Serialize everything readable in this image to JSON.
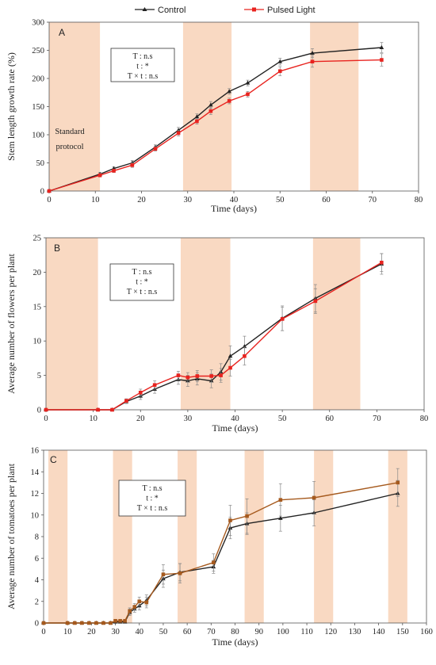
{
  "legend": {
    "series": [
      {
        "name": "Control",
        "color": "#222222",
        "marker": "triangle"
      },
      {
        "name": "Pulsed Light",
        "color": "#e8231f",
        "marker": "square"
      }
    ]
  },
  "chart_data": [
    {
      "type": "line",
      "panel": "A",
      "xlabel": "Time (days)",
      "ylabel": "Stem length growth rate (%)",
      "xlim": [
        0,
        80
      ],
      "ylim": [
        0,
        300
      ],
      "xticks": [
        0,
        10,
        20,
        30,
        40,
        50,
        60,
        70,
        80
      ],
      "yticks": [
        0,
        50,
        100,
        150,
        200,
        250,
        300
      ],
      "shaded_ranges": [
        [
          0,
          11
        ],
        [
          29,
          39.5
        ],
        [
          56.5,
          67
        ]
      ],
      "shade_color": "#f9d9c2",
      "stats": [
        "T : n.s",
        "t : *",
        "T × t : n.s"
      ],
      "annotation": [
        "Standard",
        "protocol"
      ],
      "series": [
        {
          "name": "Control",
          "color": "#222222",
          "x": [
            0,
            11,
            14,
            18,
            23,
            28,
            32,
            35,
            39,
            43,
            50,
            57,
            72
          ],
          "y": [
            0,
            30,
            40,
            50,
            78,
            108,
            132,
            153,
            177,
            192,
            230,
            245,
            255
          ],
          "err": [
            0,
            3,
            3,
            4,
            4,
            5,
            5,
            6,
            5,
            5,
            6,
            8,
            9
          ]
        },
        {
          "name": "Pulsed Light",
          "color": "#e8231f",
          "x": [
            0,
            11,
            14,
            18,
            23,
            28,
            32,
            35,
            39,
            43,
            50,
            57,
            72
          ],
          "y": [
            0,
            28,
            36,
            46,
            75,
            103,
            124,
            142,
            160,
            172,
            213,
            230,
            233
          ],
          "err": [
            0,
            3,
            3,
            4,
            4,
            5,
            5,
            6,
            5,
            5,
            8,
            10,
            11
          ]
        }
      ]
    },
    {
      "type": "line",
      "panel": "B",
      "xlabel": "Time (days)",
      "ylabel": "Average number of flowers per plant",
      "xlim": [
        0,
        80
      ],
      "ylim": [
        0,
        25
      ],
      "xticks": [
        0,
        10,
        20,
        30,
        40,
        50,
        60,
        70,
        80
      ],
      "yticks": [
        0,
        5,
        10,
        15,
        20,
        25
      ],
      "shaded_ranges": [
        [
          0,
          11
        ],
        [
          28.5,
          39
        ],
        [
          56.5,
          66.5
        ]
      ],
      "shade_color": "#f9d9c2",
      "stats": [
        "T : n.s",
        "t : *",
        "T × t : n.s"
      ],
      "series": [
        {
          "name": "Control",
          "color": "#222222",
          "x": [
            0,
            11,
            14,
            17,
            20,
            23,
            28,
            30,
            32,
            35,
            37,
            39,
            42,
            50,
            57,
            71
          ],
          "y": [
            0,
            0,
            0,
            1.2,
            2.0,
            3.0,
            4.4,
            4.2,
            4.5,
            4.2,
            5.5,
            7.8,
            9.2,
            13.3,
            16.2,
            21.2
          ],
          "err": [
            0,
            0,
            0,
            0.3,
            0.5,
            0.6,
            0.7,
            0.8,
            0.9,
            1.0,
            1.2,
            1.5,
            1.5,
            1.8,
            2.0,
            1.5
          ]
        },
        {
          "name": "Pulsed Light",
          "color": "#e8231f",
          "x": [
            0,
            11,
            14,
            17,
            20,
            23,
            28,
            30,
            32,
            35,
            37,
            39,
            42,
            50,
            57,
            71
          ],
          "y": [
            0,
            0,
            0,
            1.3,
            2.5,
            3.6,
            5.0,
            4.7,
            4.9,
            4.9,
            5.0,
            6.1,
            7.8,
            13.2,
            15.8,
            21.4
          ],
          "err": [
            0,
            0,
            0,
            0.3,
            0.5,
            0.6,
            0.6,
            0.7,
            0.8,
            0.9,
            1.0,
            1.2,
            1.3,
            1.7,
            1.8,
            1.3
          ]
        }
      ]
    },
    {
      "type": "line",
      "panel": "C",
      "xlabel": "Time (days)",
      "ylabel": "Average number of tomatoes per plant",
      "xlim": [
        0,
        160
      ],
      "ylim": [
        0,
        16
      ],
      "xticks": [
        0,
        10,
        20,
        30,
        40,
        50,
        60,
        70,
        80,
        90,
        100,
        110,
        120,
        130,
        140,
        150,
        160
      ],
      "yticks": [
        0,
        2,
        4,
        6,
        8,
        10,
        12,
        14,
        16
      ],
      "shaded_ranges": [
        [
          2,
          10
        ],
        [
          29,
          37
        ],
        [
          56,
          64
        ],
        [
          84,
          92
        ],
        [
          113,
          121
        ],
        [
          144,
          152
        ]
      ],
      "shade_color": "#f9d9c2",
      "stats": [
        "T : n.s",
        "t : *",
        "T × t : n.s"
      ],
      "series": [
        {
          "name": "Control",
          "color": "#222222",
          "x": [
            0,
            10,
            13,
            16,
            19,
            22,
            25,
            28,
            30,
            32,
            34,
            36,
            38,
            40,
            43,
            50,
            57,
            71,
            78,
            85,
            99,
            113,
            148
          ],
          "y": [
            0,
            0,
            0,
            0,
            0,
            0,
            0,
            0,
            0.1,
            0.1,
            0.1,
            1.0,
            1.3,
            1.6,
            2.1,
            4.1,
            4.7,
            5.2,
            8.8,
            9.2,
            9.7,
            10.2,
            12.0
          ],
          "err": [
            0,
            0,
            0,
            0,
            0,
            0,
            0,
            0,
            0.1,
            0.1,
            0.1,
            0.3,
            0.3,
            0.4,
            0.5,
            0.8,
            0.8,
            0.6,
            1.0,
            1.0,
            1.2,
            1.2,
            1.2
          ]
        },
        {
          "name": "Pulsed Light",
          "color": "#a65a1e",
          "x": [
            0,
            10,
            13,
            16,
            19,
            22,
            25,
            28,
            30,
            32,
            34,
            36,
            38,
            40,
            43,
            50,
            57,
            71,
            78,
            85,
            99,
            113,
            148
          ],
          "y": [
            0,
            0,
            0,
            0,
            0,
            0,
            0,
            0,
            0.2,
            0.2,
            0.2,
            1.1,
            1.5,
            2.0,
            1.9,
            4.5,
            4.6,
            5.6,
            9.5,
            9.9,
            11.4,
            11.6,
            13.0
          ],
          "err": [
            0,
            0,
            0,
            0,
            0,
            0,
            0,
            0,
            0.1,
            0.1,
            0.1,
            0.3,
            0.3,
            0.4,
            0.5,
            0.9,
            0.9,
            0.8,
            1.4,
            1.6,
            1.5,
            1.5,
            1.3
          ]
        }
      ]
    }
  ]
}
